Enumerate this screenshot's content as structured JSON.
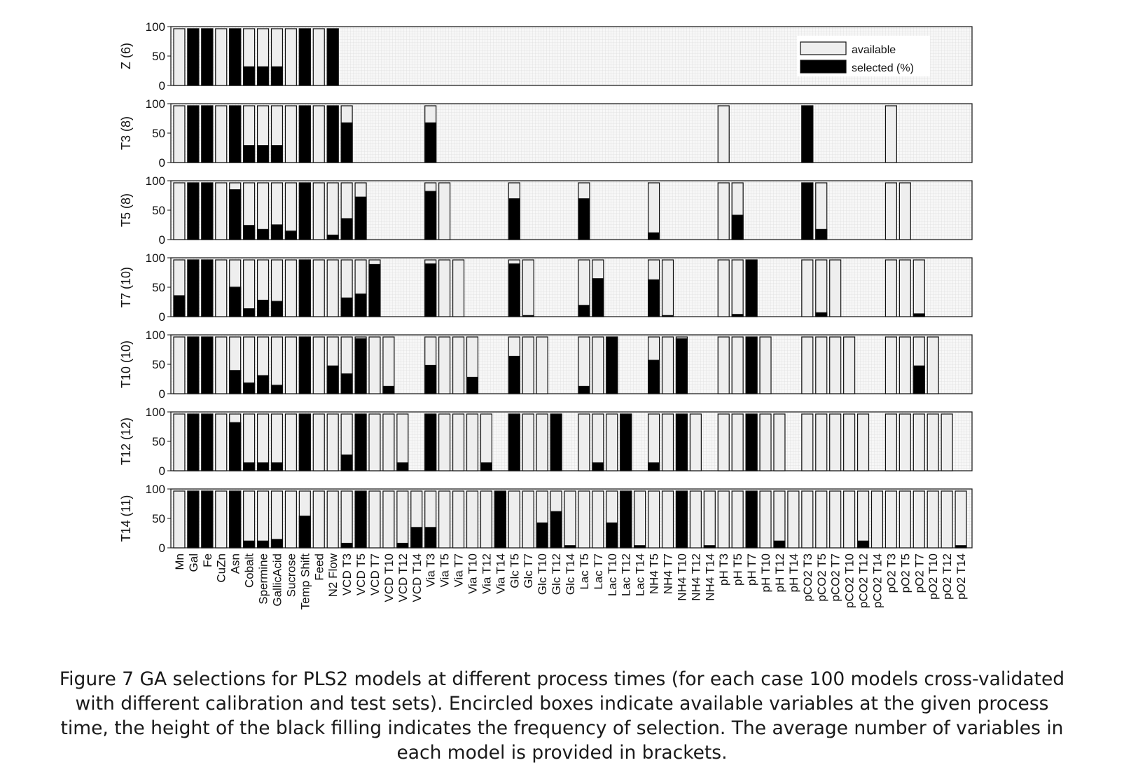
{
  "chart_data": {
    "type": "bar",
    "legend": {
      "placement": "top-right",
      "entries": [
        {
          "label": "available",
          "color": "#eeeeee"
        },
        {
          "label": "selected (%)",
          "color": "#000000"
        }
      ]
    },
    "colors": {
      "available": "#eeeeee",
      "selected": "#000000",
      "frame": "#222222",
      "background": "#f7f7f7",
      "grid": "#d8d8d8"
    },
    "grid": true,
    "ylim": [
      0,
      100
    ],
    "yticks": [
      0,
      50,
      100
    ],
    "categories": [
      "Mn",
      "Gal",
      "Fe",
      "CuZn",
      "Asn",
      "Cobalt",
      "Spermine",
      "GallicAcid",
      "Sucrose",
      "Temp Shift",
      "Feed",
      "N2 Flow",
      "VCD T3",
      "VCD T5",
      "VCD T7",
      "VCD T10",
      "VCD T12",
      "VCD T14",
      "Via T3",
      "Via T5",
      "Via T7",
      "Via T10",
      "Via T12",
      "Via T14",
      "Glc T5",
      "Glc T7",
      "Glc T10",
      "Glc T12",
      "Glc T14",
      "Lac T5",
      "Lac T7",
      "Lac T10",
      "Lac T12",
      "Lac T14",
      "NH4 T5",
      "NH4 T7",
      "NH4 T10",
      "NH4 T12",
      "NH4 T14",
      "pH T3",
      "pH T5",
      "pH T7",
      "pH T10",
      "pH T12",
      "pH T14",
      "pCO2 T3",
      "pCO2 T5",
      "pCO2 T7",
      "pCO2 T10",
      "pCO2 T12",
      "pCO2 T14",
      "pO2 T3",
      "pO2 T5",
      "pO2 T7",
      "pO2 T10",
      "pO2 T12",
      "pO2 T14"
    ],
    "panels": [
      {
        "label": "Z (6)",
        "available": [
          0,
          1,
          2,
          3,
          4,
          5,
          6,
          7,
          8,
          9,
          10,
          11
        ],
        "selected": [
          0,
          100,
          100,
          0,
          100,
          33,
          33,
          33,
          0,
          100,
          0,
          100,
          0,
          0,
          0,
          0,
          0,
          0,
          0,
          0,
          0,
          0,
          0,
          0,
          0,
          0,
          0,
          0,
          0,
          0,
          0,
          0,
          0,
          0,
          0,
          0,
          0,
          0,
          0,
          0,
          0,
          0,
          0,
          0,
          0,
          0,
          0,
          0,
          0,
          0,
          0,
          0,
          0,
          0,
          0,
          0,
          0
        ]
      },
      {
        "label": "T3 (8)",
        "available": [
          0,
          1,
          2,
          3,
          4,
          5,
          6,
          7,
          8,
          9,
          10,
          11,
          12,
          18,
          39,
          45,
          51
        ],
        "selected": [
          0,
          100,
          100,
          0,
          100,
          30,
          30,
          30,
          0,
          100,
          0,
          100,
          70,
          0,
          0,
          0,
          0,
          0,
          70,
          0,
          0,
          0,
          0,
          0,
          0,
          0,
          0,
          0,
          0,
          0,
          0,
          0,
          0,
          0,
          0,
          0,
          0,
          0,
          0,
          0,
          0,
          0,
          0,
          0,
          0,
          100,
          0,
          0,
          0,
          0,
          0,
          0,
          0,
          0,
          0,
          0,
          0
        ]
      },
      {
        "label": "T5 (8)",
        "available": [
          0,
          1,
          2,
          3,
          4,
          5,
          6,
          7,
          8,
          9,
          10,
          11,
          12,
          13,
          18,
          19,
          24,
          29,
          34,
          39,
          40,
          45,
          46,
          51,
          52
        ],
        "selected": [
          0,
          100,
          100,
          0,
          88,
          25,
          18,
          26,
          15,
          100,
          0,
          8,
          37,
          75,
          0,
          0,
          0,
          0,
          85,
          0,
          0,
          0,
          0,
          0,
          72,
          0,
          0,
          0,
          0,
          72,
          0,
          0,
          0,
          0,
          12,
          0,
          0,
          0,
          0,
          0,
          43,
          0,
          0,
          0,
          0,
          100,
          18,
          0,
          0,
          0,
          0,
          0,
          0,
          0,
          0,
          0,
          0
        ]
      },
      {
        "label": "T7 (10)",
        "available": [
          0,
          1,
          2,
          3,
          4,
          5,
          6,
          7,
          8,
          9,
          10,
          11,
          12,
          13,
          14,
          18,
          19,
          20,
          24,
          25,
          29,
          30,
          34,
          35,
          39,
          40,
          41,
          45,
          46,
          47,
          51,
          52,
          53
        ],
        "selected": [
          37,
          100,
          100,
          0,
          52,
          14,
          29,
          27,
          0,
          100,
          0,
          0,
          33,
          40,
          92,
          0,
          0,
          0,
          93,
          0,
          0,
          0,
          0,
          0,
          93,
          2,
          0,
          0,
          0,
          20,
          67,
          0,
          0,
          0,
          65,
          2,
          0,
          0,
          0,
          0,
          4,
          100,
          0,
          0,
          0,
          0,
          7,
          0,
          0,
          0,
          0,
          0,
          0,
          5,
          0,
          0,
          0
        ]
      },
      {
        "label": "T10 (10)",
        "available": [
          0,
          1,
          2,
          3,
          4,
          5,
          6,
          7,
          8,
          9,
          10,
          11,
          12,
          13,
          14,
          15,
          18,
          19,
          20,
          21,
          24,
          25,
          26,
          29,
          30,
          31,
          34,
          35,
          36,
          39,
          40,
          41,
          42,
          45,
          46,
          47,
          48,
          51,
          52,
          53,
          54
        ],
        "selected": [
          0,
          100,
          100,
          0,
          41,
          19,
          32,
          15,
          0,
          100,
          0,
          49,
          35,
          97,
          0,
          13,
          0,
          0,
          50,
          0,
          0,
          29,
          0,
          0,
          66,
          0,
          0,
          0,
          0,
          13,
          0,
          100,
          0,
          0,
          59,
          0,
          97,
          0,
          0,
          0,
          0,
          100,
          0,
          0,
          0,
          0,
          0,
          0,
          0,
          0,
          0,
          0,
          0,
          49,
          0,
          0,
          0
        ]
      },
      {
        "label": "T12 (12)",
        "available": [
          0,
          1,
          2,
          3,
          4,
          5,
          6,
          7,
          8,
          9,
          10,
          11,
          12,
          13,
          14,
          15,
          16,
          18,
          19,
          20,
          21,
          22,
          24,
          25,
          26,
          27,
          29,
          30,
          31,
          32,
          34,
          35,
          36,
          37,
          39,
          40,
          41,
          42,
          43,
          45,
          46,
          47,
          48,
          49,
          51,
          52,
          53,
          54,
          55
        ],
        "selected": [
          0,
          100,
          100,
          0,
          85,
          14,
          14,
          14,
          0,
          100,
          0,
          0,
          28,
          100,
          0,
          0,
          14,
          0,
          100,
          0,
          0,
          0,
          14,
          0,
          100,
          0,
          0,
          100,
          0,
          0,
          14,
          0,
          100,
          0,
          14,
          0,
          100,
          0,
          0,
          0,
          0,
          100,
          0,
          0,
          0,
          0,
          0,
          0,
          0,
          0,
          0,
          0,
          0,
          0,
          0,
          0,
          0
        ]
      },
      {
        "label": "T14 (11)",
        "available": [
          0,
          1,
          2,
          3,
          4,
          5,
          6,
          7,
          8,
          9,
          10,
          11,
          12,
          13,
          14,
          15,
          16,
          17,
          18,
          19,
          20,
          21,
          22,
          23,
          24,
          25,
          26,
          27,
          28,
          29,
          30,
          31,
          32,
          33,
          34,
          35,
          36,
          37,
          38,
          39,
          40,
          41,
          42,
          43,
          44,
          45,
          46,
          47,
          48,
          49,
          50,
          51,
          52,
          53,
          54,
          55,
          56
        ],
        "selected": [
          0,
          100,
          100,
          0,
          100,
          12,
          12,
          15,
          0,
          56,
          0,
          0,
          8,
          100,
          0,
          0,
          8,
          36,
          36,
          0,
          0,
          0,
          0,
          100,
          0,
          0,
          44,
          64,
          4,
          0,
          0,
          44,
          100,
          4,
          0,
          0,
          100,
          0,
          4,
          0,
          0,
          100,
          0,
          12,
          0,
          0,
          0,
          0,
          0,
          12,
          0,
          0,
          0,
          0,
          0,
          0,
          4
        ]
      }
    ]
  },
  "caption": {
    "lines": [
      "Figure 7 GA selections for PLS2 models at different process times (for each case 100 models cross-validated",
      "with different calibration and test sets). Encircled boxes indicate available variables at the given process",
      "time, the height of the black filling indicates the frequency of selection. The average number of variables in",
      "each model is provided in brackets."
    ]
  }
}
